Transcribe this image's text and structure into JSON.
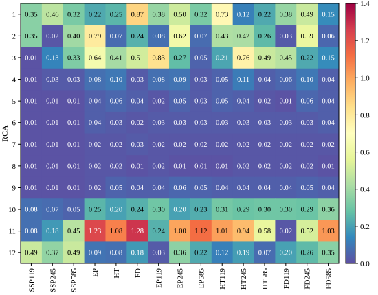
{
  "chart_data": {
    "type": "heatmap",
    "title": "",
    "xlabel": "",
    "ylabel": "RCA",
    "columns": [
      "SSP119",
      "SSP245",
      "SSP585",
      "EP",
      "HT",
      "FD",
      "EP119",
      "EP245",
      "EP585",
      "HT119",
      "HT245",
      "HT585",
      "FD119",
      "FD245",
      "FD585"
    ],
    "rows": [
      "1",
      "2",
      "3",
      "4",
      "5",
      "6",
      "7",
      "8",
      "9",
      "10",
      "11",
      "12"
    ],
    "values": [
      [
        0.35,
        0.46,
        0.32,
        0.22,
        0.25,
        0.87,
        0.38,
        0.5,
        0.32,
        0.73,
        0.12,
        0.22,
        0.38,
        0.49,
        0.15
      ],
      [
        0.35,
        0.02,
        0.4,
        0.79,
        0.07,
        0.24,
        0.08,
        0.62,
        0.07,
        0.43,
        0.42,
        0.26,
        0.03,
        0.59,
        0.06
      ],
      [
        0.01,
        0.13,
        0.33,
        0.64,
        0.41,
        0.51,
        0.83,
        0.27,
        0.05,
        0.21,
        0.76,
        0.49,
        0.45,
        0.22,
        0.15
      ],
      [
        0.01,
        0.03,
        0.03,
        0.08,
        0.1,
        0.03,
        0.08,
        0.09,
        0.03,
        0.05,
        0.11,
        0.04,
        0.06,
        0.1,
        0.04
      ],
      [
        0.01,
        0.01,
        0.01,
        0.04,
        0.06,
        0.04,
        0.02,
        0.05,
        0.03,
        0.05,
        0.04,
        0.02,
        0.01,
        0.06,
        0.04
      ],
      [
        0.01,
        0.01,
        0.01,
        0.04,
        0.03,
        0.02,
        0.03,
        0.03,
        0.03,
        0.03,
        0.03,
        0.03,
        0.03,
        0.03,
        0.04
      ],
      [
        0.01,
        0.01,
        0.01,
        0.02,
        0.02,
        0.03,
        0.02,
        0.02,
        0.02,
        0.02,
        0.02,
        0.02,
        0.02,
        0.02,
        0.02
      ],
      [
        0.01,
        0.01,
        0.01,
        0.02,
        0.02,
        0.01,
        0.02,
        0.01,
        0.01,
        0.01,
        0.02,
        0.02,
        0.02,
        0.02,
        0.01
      ],
      [
        0.01,
        0.01,
        0.01,
        0.02,
        0.05,
        0.04,
        0.04,
        0.06,
        0.05,
        0.04,
        0.04,
        0.04,
        0.04,
        0.05,
        0.04
      ],
      [
        0.08,
        0.07,
        0.05,
        0.25,
        0.2,
        0.24,
        0.3,
        0.2,
        0.23,
        0.31,
        0.29,
        0.3,
        0.3,
        0.29,
        0.36
      ],
      [
        0.08,
        0.18,
        0.45,
        1.23,
        1.08,
        1.28,
        0.24,
        1.0,
        1.12,
        1.01,
        0.94,
        0.58,
        0.02,
        0.52,
        1.03
      ],
      [
        0.49,
        0.37,
        0.49,
        0.09,
        0.08,
        0.18,
        0.03,
        0.36,
        0.22,
        0.12,
        0.19,
        0.07,
        0.2,
        0.26,
        0.35
      ]
    ],
    "value_labels": [
      [
        "0.35",
        "0.46",
        "0.32",
        "0.22",
        "0.25",
        "0.87",
        "0.38",
        "0.50",
        "0.32",
        "0.73",
        "0.12",
        "0.22",
        "0.38",
        "0.49",
        "0.15"
      ],
      [
        "0.35",
        "0.02",
        "0.40",
        "0.79",
        "0.07",
        "0.24",
        "0.08",
        "0.62",
        "0.07",
        "0.43",
        "0.42",
        "0.26",
        "0.03",
        "0.59",
        "0.06"
      ],
      [
        "0.01",
        "0.13",
        "0.33",
        "0.64",
        "0.41",
        "0.51",
        "0.83",
        "0.27",
        "0.05",
        "0.21",
        "0.76",
        "0.49",
        "0.45",
        "0.22",
        "0.15"
      ],
      [
        "0.01",
        "0.03",
        "0.03",
        "0.08",
        "0.10",
        "0.03",
        "0.08",
        "0.09",
        "0.03",
        "0.05",
        "0.11",
        "0.04",
        "0.06",
        "0.10",
        "0.04"
      ],
      [
        "0.01",
        "0.01",
        "0.01",
        "0.04",
        "0.06",
        "0.04",
        "0.02",
        "0.05",
        "0.03",
        "0.05",
        "0.04",
        "0.02",
        "0.01",
        "0.06",
        "0.04"
      ],
      [
        "0.01",
        "0.01",
        "0.01",
        "0.04",
        "0.03",
        "0.02",
        "0.03",
        "0.03",
        "0.03",
        "0.03",
        "0.03",
        "0.03",
        "0.03",
        "0.03",
        "0.04"
      ],
      [
        "0.01",
        "0.01",
        "0.01",
        "0.02",
        "0.02",
        "0.03",
        "0.02",
        "0.02",
        "0.02",
        "0.02",
        "0.02",
        "0.02",
        "0.02",
        "0.02",
        "0.02"
      ],
      [
        "0.01",
        "0.01",
        "0.01",
        "0.02",
        "0.02",
        "0.01",
        "0.02",
        "0.01",
        "0.01",
        "0.01",
        "0.02",
        "0.02",
        "0.02",
        "0.02",
        "0.01"
      ],
      [
        "0.01",
        "0.01",
        "0.01",
        "0.02",
        "0.05",
        "0.04",
        "0.04",
        "0.06",
        "0.05",
        "0.04",
        "0.04",
        "0.04",
        "0.04",
        "0.05",
        "0.04"
      ],
      [
        "0.08",
        "0.07",
        "0.05",
        "0.25",
        "0.20",
        "0.24",
        "0.30",
        "0.20",
        "0.23",
        "0.31",
        "0.29",
        "0.30",
        "0.30",
        "0.29",
        "0.36"
      ],
      [
        "0.08",
        "0.18",
        "0.45",
        "1.23",
        "1.08",
        "1.28",
        "0.24",
        "1.00",
        "1.12",
        "1.01",
        "0.94",
        "0.58",
        "0.02",
        "0.52",
        "1.03"
      ],
      [
        "0.49",
        "0.37",
        "0.49",
        "0.09",
        "0.08",
        "0.18",
        "0.03",
        "0.36",
        "0.22",
        "0.12",
        "0.19",
        "0.07",
        "0.20",
        "0.26",
        "0.35"
      ]
    ],
    "colorbar": {
      "range": [
        0,
        1.4
      ],
      "ticks": [
        0.0,
        0.2,
        0.4,
        0.6,
        0.8,
        1.0,
        1.2,
        1.4
      ],
      "tick_labels": [
        "0.0",
        "0.2",
        "0.4",
        "0.6",
        "0.8",
        "1.0",
        "1.2",
        "1.4"
      ],
      "colormap": "Spectral_r",
      "stops": [
        "#5e4fa2",
        "#3288bd",
        "#66c2a5",
        "#abdda4",
        "#e6f598",
        "#ffffbf",
        "#fee08b",
        "#fdae61",
        "#f46d43",
        "#d53e4f",
        "#9e0142"
      ]
    },
    "grid": false,
    "legend": "colorbar-right"
  }
}
